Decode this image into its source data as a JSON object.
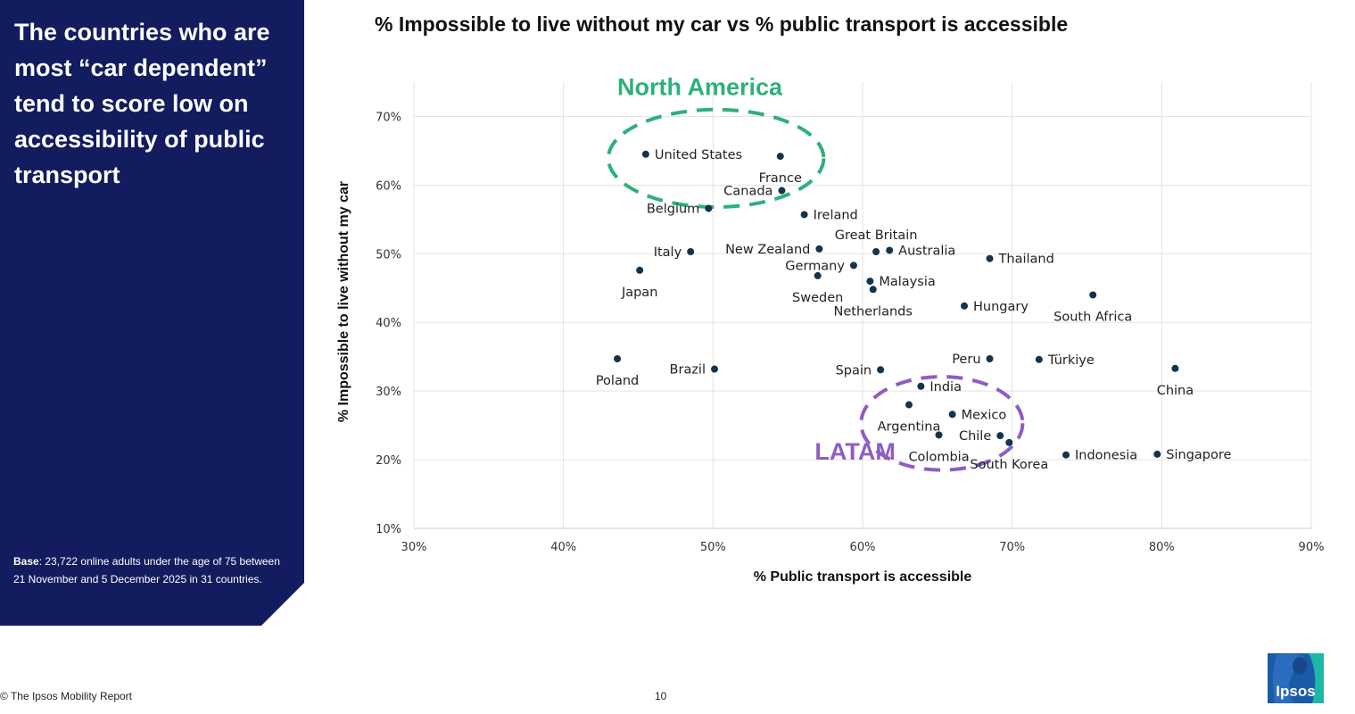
{
  "sidebar": {
    "headline": "The countries who are most “car dependent” tend to score low on accessibility of public transport",
    "base_label": "Base",
    "base_text": ": 23,722 online adults under the age of 75 between 21 November and 5 December 2025 in  31 countries."
  },
  "footer": {
    "copyright": "© The Ipsos Mobility Report",
    "page_number": "10",
    "logo_text": "Ipsos"
  },
  "colors": {
    "panel": "#121c5e",
    "point": "#12344d",
    "north_america": "#2eb07a",
    "latam": "#8e5dc1",
    "logo": "#1a5ba8",
    "logo_accent": "#1eb6a6"
  },
  "chart_data": {
    "type": "scatter",
    "title": "% Impossible to live without my car vs % public transport is accessible",
    "xlabel": "% Public transport is accessible",
    "ylabel": "% Impossible to live without my car",
    "xlim": [
      30,
      90
    ],
    "ylim": [
      10,
      75
    ],
    "xticks": [
      30,
      40,
      50,
      60,
      70,
      80,
      90
    ],
    "yticks": [
      10,
      20,
      30,
      40,
      50,
      60,
      70
    ],
    "tick_format": "{v}%",
    "grid": true,
    "points": [
      {
        "label": "United States",
        "x": 45.5,
        "y": 64.5,
        "label_pos": "right"
      },
      {
        "label": "France",
        "x": 54.5,
        "y": 64.2,
        "label_pos": "below"
      },
      {
        "label": "Canada",
        "x": 54.6,
        "y": 59.2,
        "label_pos": "left"
      },
      {
        "label": "Belgium",
        "x": 49.7,
        "y": 56.6,
        "label_pos": "left"
      },
      {
        "label": "Ireland",
        "x": 56.1,
        "y": 55.7,
        "label_pos": "right"
      },
      {
        "label": "Great Britain",
        "x": 60.9,
        "y": 50.3,
        "label_pos": "above"
      },
      {
        "label": "Australia",
        "x": 61.8,
        "y": 50.5,
        "label_pos": "right"
      },
      {
        "label": "New Zealand",
        "x": 57.1,
        "y": 50.7,
        "label_pos": "left"
      },
      {
        "label": "Italy",
        "x": 48.5,
        "y": 50.3,
        "label_pos": "left"
      },
      {
        "label": "Thailand",
        "x": 68.5,
        "y": 49.3,
        "label_pos": "right"
      },
      {
        "label": "Germany",
        "x": 59.4,
        "y": 48.3,
        "label_pos": "left"
      },
      {
        "label": "Japan",
        "x": 45.1,
        "y": 47.6,
        "label_pos": "below"
      },
      {
        "label": "Sweden",
        "x": 57.0,
        "y": 46.8,
        "label_pos": "below"
      },
      {
        "label": "Malaysia",
        "x": 60.5,
        "y": 46.0,
        "label_pos": "right"
      },
      {
        "label": "Netherlands",
        "x": 60.7,
        "y": 44.8,
        "label_pos": "below"
      },
      {
        "label": "South Africa",
        "x": 75.4,
        "y": 44.0,
        "label_pos": "below"
      },
      {
        "label": "Hungary",
        "x": 66.8,
        "y": 42.4,
        "label_pos": "right"
      },
      {
        "label": "Poland",
        "x": 43.6,
        "y": 34.7,
        "label_pos": "below"
      },
      {
        "label": "Peru",
        "x": 68.5,
        "y": 34.7,
        "label_pos": "left"
      },
      {
        "label": "Türkiye",
        "x": 71.8,
        "y": 34.6,
        "label_pos": "right"
      },
      {
        "label": "Brazil",
        "x": 50.1,
        "y": 33.2,
        "label_pos": "left"
      },
      {
        "label": "Spain",
        "x": 61.2,
        "y": 33.1,
        "label_pos": "left"
      },
      {
        "label": "China",
        "x": 80.9,
        "y": 33.3,
        "label_pos": "below"
      },
      {
        "label": "India",
        "x": 63.9,
        "y": 30.7,
        "label_pos": "right"
      },
      {
        "label": "Argentina",
        "x": 63.1,
        "y": 28.0,
        "label_pos": "below"
      },
      {
        "label": "Mexico",
        "x": 66.0,
        "y": 26.6,
        "label_pos": "right"
      },
      {
        "label": "Colombia",
        "x": 65.1,
        "y": 23.6,
        "label_pos": "below"
      },
      {
        "label": "Chile",
        "x": 69.2,
        "y": 23.5,
        "label_pos": "left"
      },
      {
        "label": "South Korea",
        "x": 69.8,
        "y": 22.5,
        "label_pos": "below"
      },
      {
        "label": "Indonesia",
        "x": 73.6,
        "y": 20.7,
        "label_pos": "right"
      },
      {
        "label": "Singapore",
        "x": 79.7,
        "y": 20.8,
        "label_pos": "right"
      }
    ],
    "annotations": [
      {
        "label": "North America",
        "color": "#2eb07a",
        "ellipse": {
          "cx": 50.2,
          "cy": 63.9,
          "rx": 7.2,
          "ry": 7.1
        },
        "label_at": {
          "x": 43.6,
          "y": 73.1
        }
      },
      {
        "label": "LATAM",
        "color": "#8e5dc1",
        "ellipse": {
          "cx": 65.3,
          "cy": 25.3,
          "rx": 5.4,
          "ry": 6.8
        },
        "label_at": {
          "x": 56.8,
          "y": 20.0
        }
      }
    ]
  }
}
